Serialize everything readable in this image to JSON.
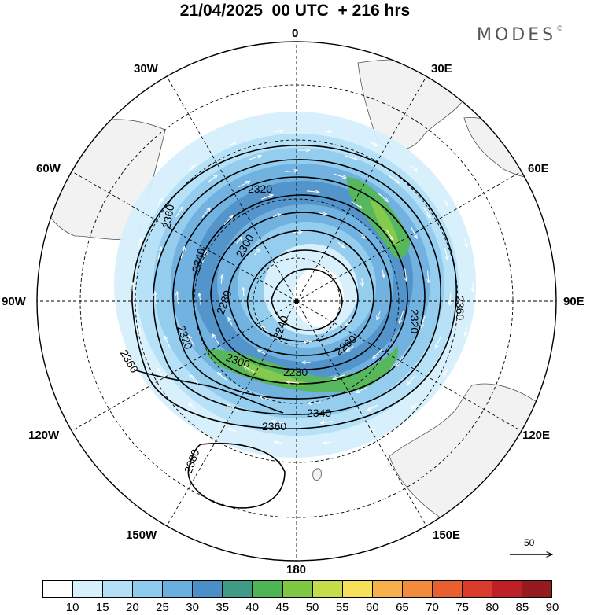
{
  "title": "21/04/2025  00 UTC  + 216 hrs",
  "brand": "MODES",
  "brand_mark": "©",
  "longitude_labels": {
    "0": "0",
    "30E": "30E",
    "60E": "60E",
    "90E": "90E",
    "120E": "120E",
    "150E": "150E",
    "180": "180",
    "150W": "150W",
    "120W": "120W",
    "90W": "90W",
    "60W": "60W",
    "30W": "30W"
  },
  "contour_labels": [
    "2360",
    "2340",
    "2320",
    "2300",
    "2280",
    "2240",
    "2260",
    "2280",
    "2300",
    "2320",
    "2340",
    "2360",
    "2360",
    "2380",
    "2360",
    "2320"
  ],
  "colorbar": {
    "ticks": [
      "10",
      "15",
      "20",
      "25",
      "30",
      "35",
      "40",
      "45",
      "50",
      "55",
      "60",
      "65",
      "70",
      "75",
      "80",
      "85",
      "90"
    ],
    "colors": [
      "#ffffff",
      "#d6f0fc",
      "#b3e0f7",
      "#8fcbee",
      "#6aaee0",
      "#4a8fc8",
      "#3f9b86",
      "#4fb454",
      "#7ec843",
      "#c5dc4b",
      "#f7e05a",
      "#f6b14c",
      "#f38a3c",
      "#e95f30",
      "#d93a2b",
      "#be2027",
      "#961a20"
    ]
  },
  "vector_scale_label": "50"
}
